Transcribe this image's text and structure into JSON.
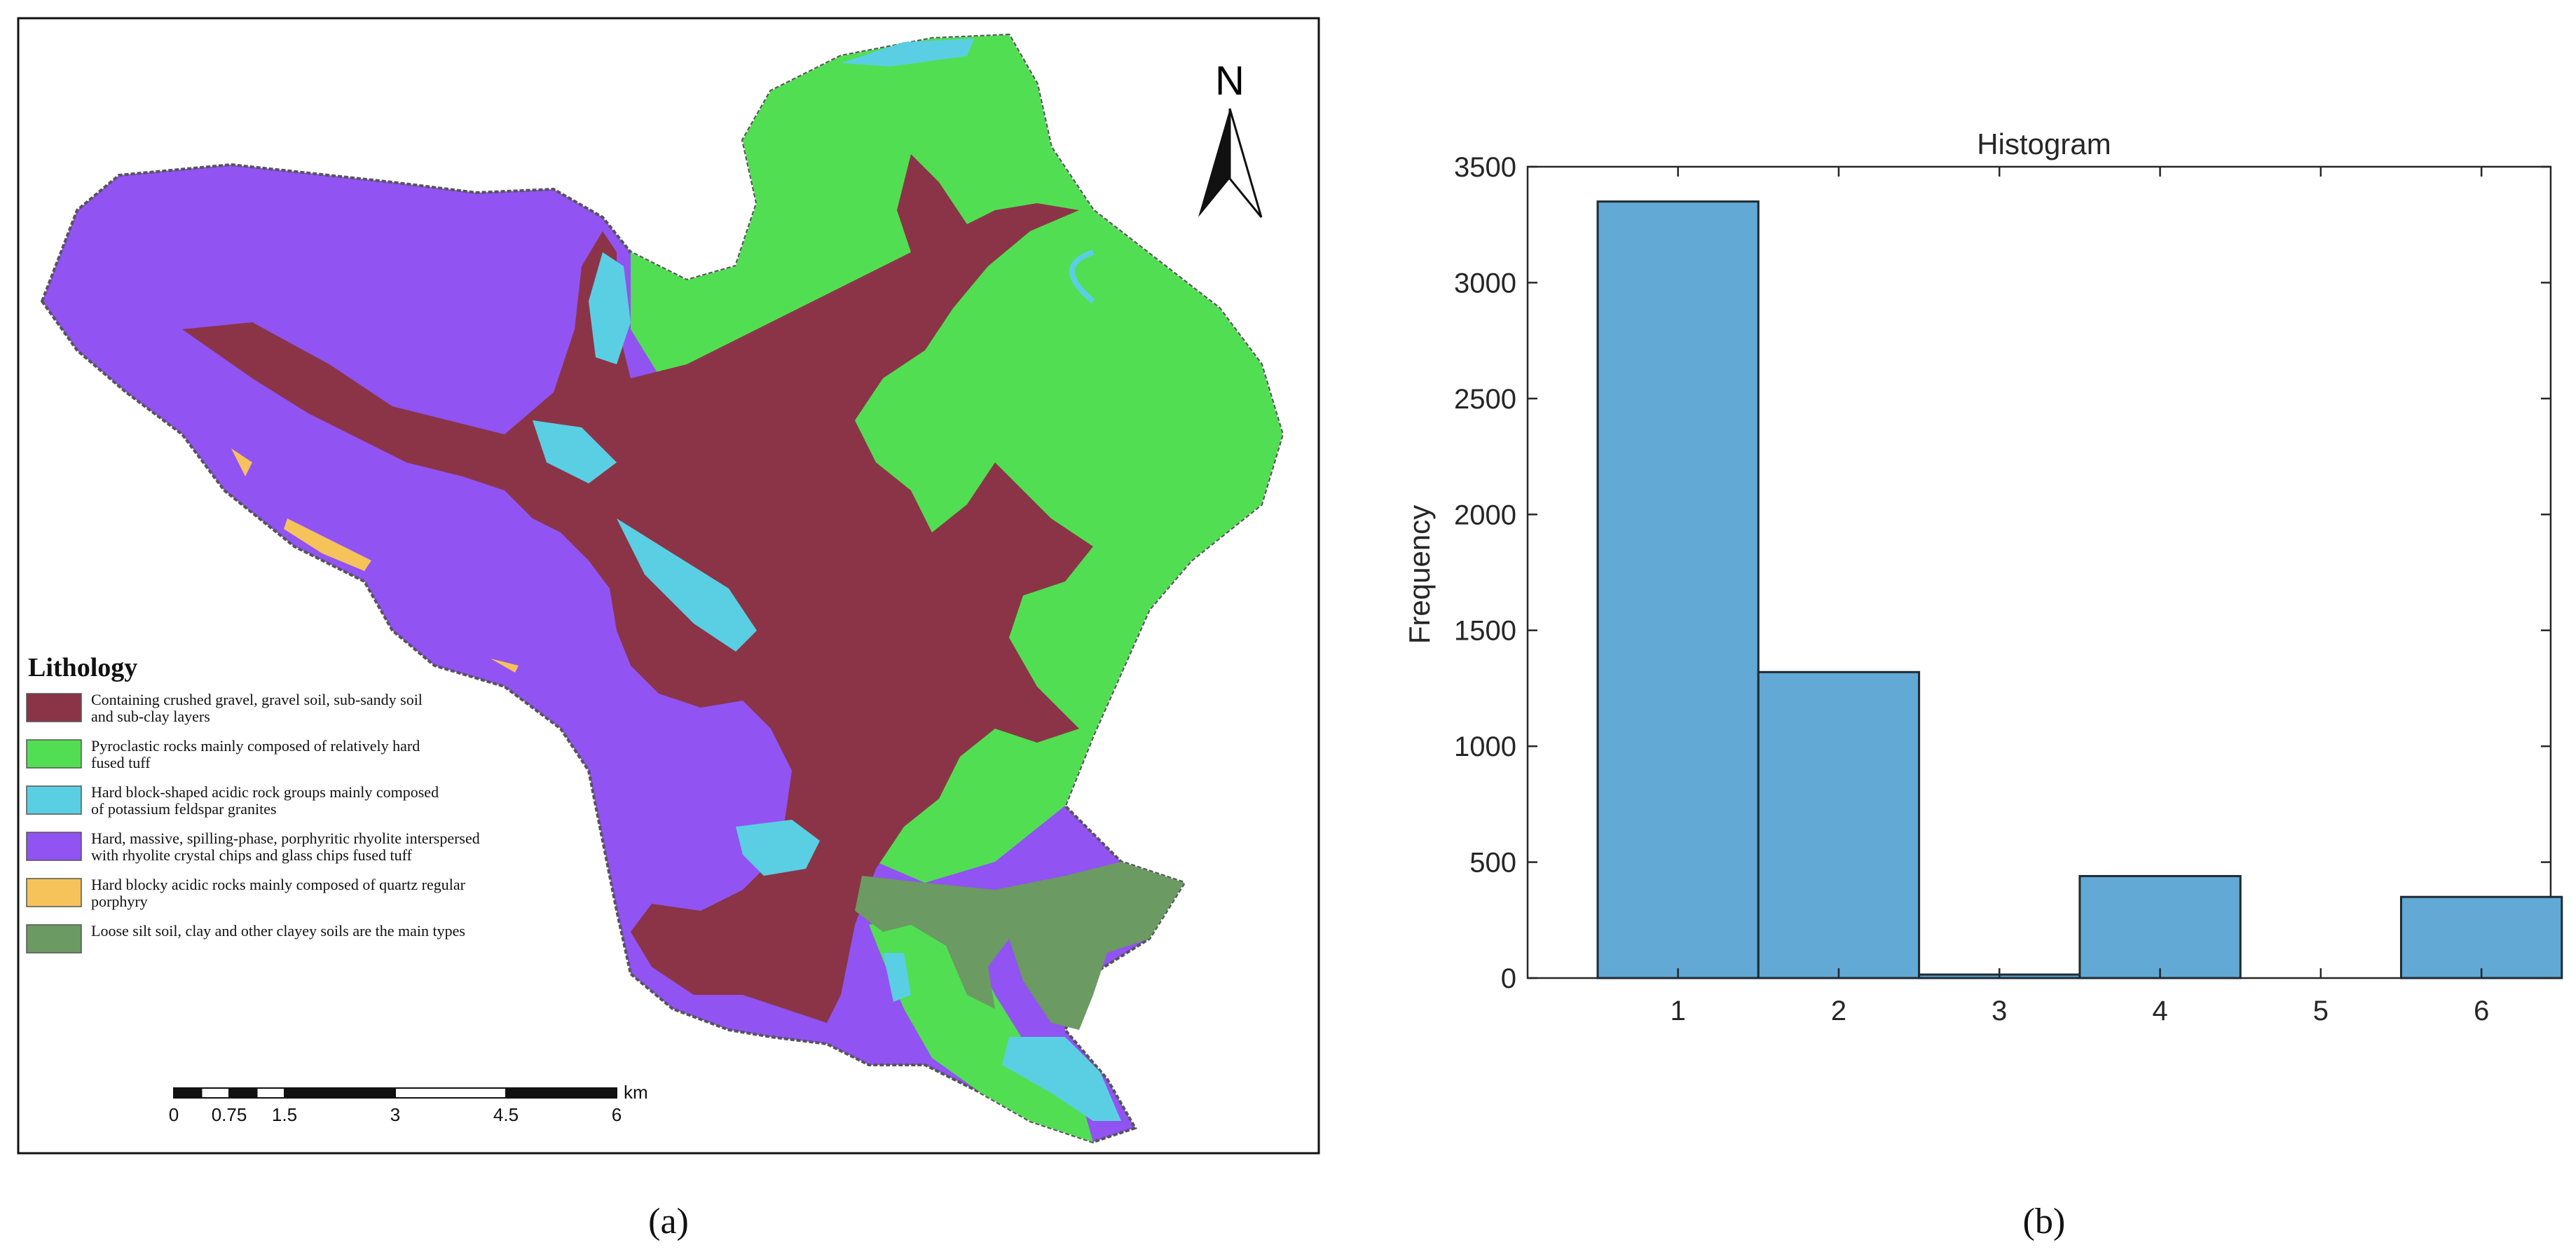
{
  "panel_a": {
    "caption": "(a)",
    "north_label": "N",
    "legend": {
      "title": "Lithology",
      "items": [
        {
          "text_1": "Containing crushed gravel, gravel soil, sub-sandy soil",
          "text_2": "and sub-clay layers",
          "color": "#8B3448"
        },
        {
          "text_1": "Pyroclastic rocks mainly composed of relatively hard",
          "text_2": "fused tuff",
          "color": "#52DE52"
        },
        {
          "text_1": "Hard block-shaped acidic rock groups mainly composed",
          "text_2": "of potassium feldspar granites",
          "color": "#5ACFE3"
        },
        {
          "text_1": "Hard, massive, spilling-phase, porphyritic rhyolite interspersed",
          "text_2": "with rhyolite crystal chips and glass chips fused tuff",
          "color": "#9153F2"
        },
        {
          "text_1": "Hard blocky acidic rocks mainly composed of quartz regular",
          "text_2": "porphyry",
          "color": "#F6C25A"
        },
        {
          "text_1": "Loose silt soil, clay and other clayey soils are the main types",
          "text_2": "",
          "color": "#6B9A62"
        }
      ]
    },
    "scale_bar": {
      "unit": "km",
      "ticks": [
        "0",
        "0.75",
        "1.5",
        "3",
        "4.5",
        "6"
      ]
    }
  },
  "panel_b": {
    "caption": "(b)",
    "chart_data": {
      "type": "bar",
      "title": "Histogram",
      "xlabel": "",
      "ylabel": "Frequency",
      "categories": [
        "1",
        "2",
        "3",
        "4",
        "5",
        "6"
      ],
      "values": [
        3350,
        1320,
        15,
        440,
        0,
        350
      ],
      "ylim": [
        0,
        3500
      ],
      "yticks": [
        "0",
        "500",
        "1000",
        "1500",
        "2000",
        "2500",
        "3000",
        "3500"
      ],
      "bar_color": "#62A9D5",
      "grid": false,
      "legend": "none"
    }
  }
}
